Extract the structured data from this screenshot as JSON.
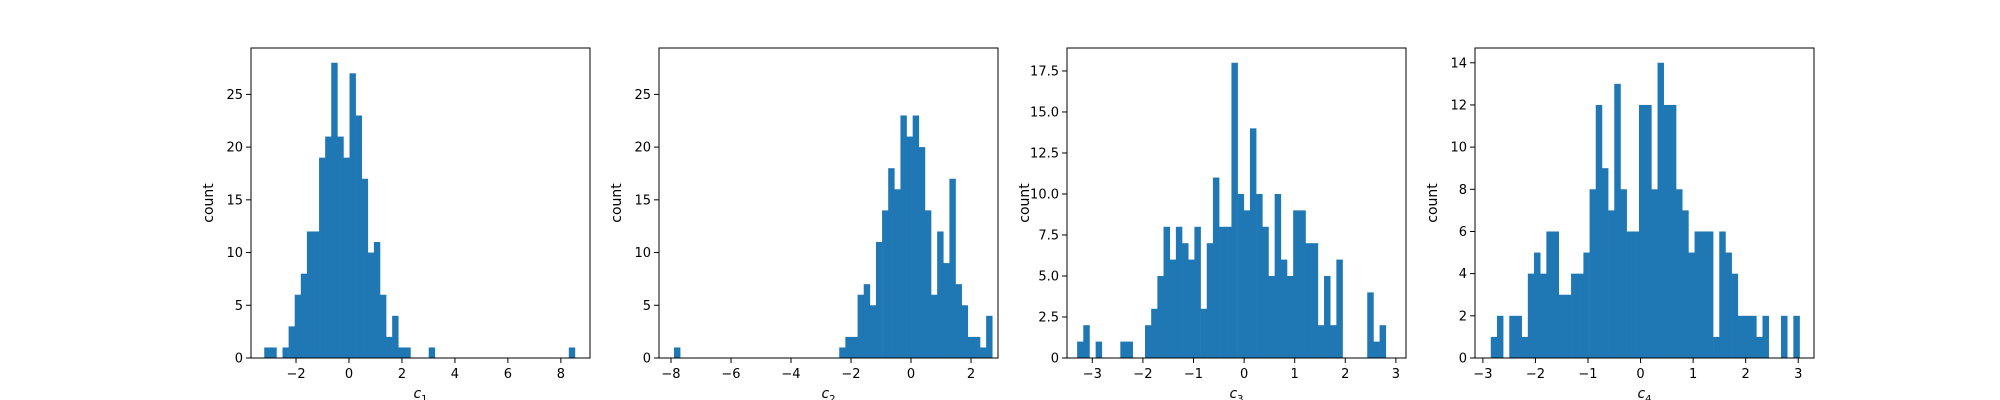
{
  "chart_data": [
    {
      "type": "bar",
      "xlabel": "c",
      "xlabel_sub": "1",
      "ylabel": "count",
      "xlim": [
        -3.7,
        9.1
      ],
      "ylim": [
        0,
        29.4
      ],
      "xticks": [
        -2,
        0,
        2,
        4,
        6,
        8
      ],
      "yticks": [
        0,
        5,
        10,
        15,
        20,
        25
      ],
      "color": "#1f77b4",
      "bins": {
        "start": -3.2,
        "width": 0.23,
        "values": [
          1,
          1,
          0,
          1,
          3,
          6,
          8,
          12,
          12,
          19,
          21,
          28,
          21,
          19,
          27,
          23,
          17,
          10,
          11,
          6,
          2,
          4,
          1,
          1,
          0,
          0,
          0,
          1,
          0,
          0,
          0,
          0,
          0,
          0,
          0,
          0,
          0,
          0,
          0,
          0,
          0,
          0,
          0,
          0,
          0,
          0,
          0,
          0,
          0,
          0,
          1
        ]
      }
    },
    {
      "type": "bar",
      "xlabel": "c",
      "xlabel_sub": "2",
      "ylabel": "count",
      "xlim": [
        -8.4,
        2.9
      ],
      "ylim": [
        0,
        29.4
      ],
      "xticks": [
        -8,
        -6,
        -4,
        -2,
        0,
        2
      ],
      "yticks": [
        0,
        5,
        10,
        15,
        20,
        25
      ],
      "color": "#1f77b4",
      "bins": {
        "start": -7.9,
        "width": 0.204,
        "values": [
          1,
          0,
          0,
          0,
          0,
          0,
          0,
          0,
          0,
          0,
          0,
          0,
          0,
          0,
          0,
          0,
          0,
          0,
          0,
          0,
          0,
          0,
          0,
          0,
          0,
          0,
          0,
          1,
          2,
          2,
          6,
          7,
          5,
          11,
          14,
          18,
          16,
          23,
          21,
          23,
          20,
          14,
          6,
          12,
          9,
          17,
          7,
          5,
          2,
          2,
          1,
          4
        ]
      }
    },
    {
      "type": "bar",
      "xlabel": "c",
      "xlabel_sub": "3",
      "ylabel": "count",
      "xlim": [
        -3.5,
        3.2
      ],
      "ylim": [
        0,
        18.9
      ],
      "xticks": [
        -3,
        -2,
        -1,
        0,
        1,
        2,
        3
      ],
      "yticks": [
        0,
        2.5,
        5.0,
        7.5,
        10.0,
        12.5,
        15.0,
        17.5
      ],
      "ytick_labels": [
        "0",
        "2.5",
        "5.0",
        "7.5",
        "10.0",
        "12.5",
        "15.0",
        "17.5"
      ],
      "color": "#1f77b4",
      "bins": {
        "start": -3.3,
        "width": 0.122,
        "values": [
          1,
          2,
          0,
          1,
          0,
          0,
          0,
          1,
          1,
          0,
          0,
          2,
          3,
          5,
          8,
          6,
          8,
          7,
          6,
          8,
          3,
          7,
          11,
          8,
          8,
          18,
          10,
          9,
          14,
          10,
          8,
          5,
          10,
          6,
          5,
          9,
          9,
          7,
          7,
          2,
          5,
          2,
          6,
          0,
          0,
          0,
          0,
          4,
          1,
          2
        ]
      }
    },
    {
      "type": "bar",
      "xlabel": "c",
      "xlabel_sub": "4",
      "ylabel": "count",
      "xlim": [
        -3.15,
        3.3
      ],
      "ylim": [
        0,
        14.7
      ],
      "xticks": [
        -3,
        -2,
        -1,
        0,
        1,
        2,
        3
      ],
      "yticks": [
        0,
        2,
        4,
        6,
        8,
        10,
        12,
        14
      ],
      "color": "#1f77b4",
      "bins": {
        "start": -2.85,
        "width": 0.1175,
        "values": [
          1,
          2,
          0,
          2,
          2,
          1,
          4,
          5,
          4,
          6,
          6,
          3,
          3,
          4,
          4,
          5,
          8,
          12,
          9,
          7,
          13,
          8,
          6,
          6,
          12,
          12,
          8,
          14,
          12,
          12,
          8,
          7,
          5,
          6,
          6,
          6,
          1,
          6,
          5,
          4,
          2,
          2,
          2,
          1,
          2,
          0,
          0,
          2,
          0,
          2
        ]
      }
    }
  ]
}
